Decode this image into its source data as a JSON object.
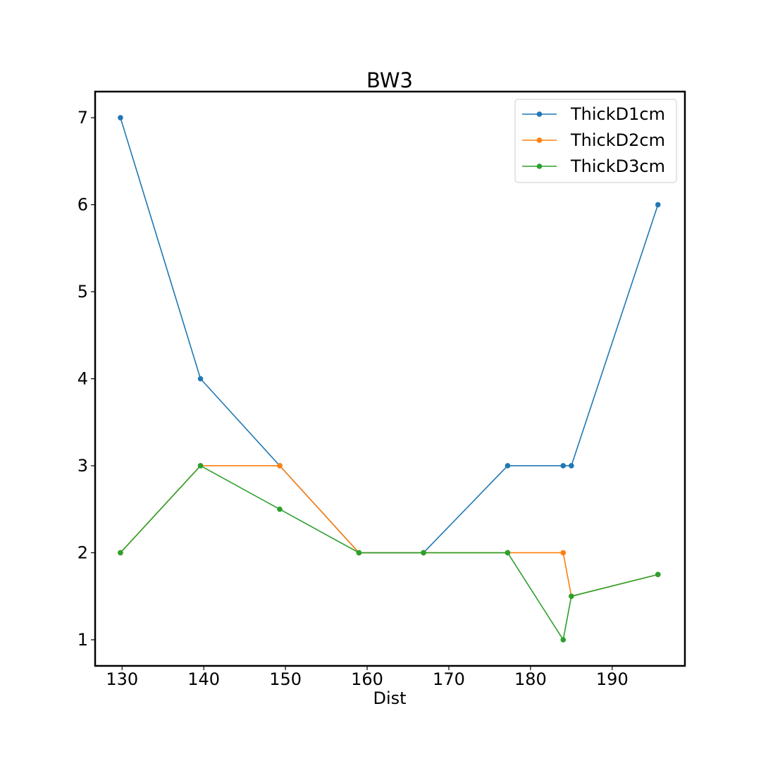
{
  "chart_data": {
    "type": "line",
    "title": "BW3",
    "xlabel": "Dist",
    "ylabel": "",
    "xlim": [
      126.7,
      198.9
    ],
    "ylim": [
      0.7,
      7.3
    ],
    "xticks": [
      130,
      140,
      150,
      160,
      170,
      180,
      190
    ],
    "yticks": [
      1,
      2,
      3,
      4,
      5,
      6,
      7
    ],
    "x": [
      129.8,
      139.6,
      149.3,
      159.0,
      166.9,
      177.2,
      184.0,
      185.0,
      195.6
    ],
    "series": [
      {
        "name": "ThickD1cm",
        "color": "#1f77b4",
        "values": [
          7,
          4,
          3,
          2,
          2,
          3,
          3,
          3,
          6
        ]
      },
      {
        "name": "ThickD2cm",
        "color": "#ff7f0e",
        "values": [
          2,
          3,
          3,
          2,
          2,
          2,
          2,
          1.5,
          1.75
        ]
      },
      {
        "name": "ThickD3cm",
        "color": "#2ca02c",
        "values": [
          2,
          3,
          2.5,
          2,
          2,
          2,
          1,
          1.5,
          1.75
        ]
      }
    ],
    "grid": false,
    "legend_position": "upper right"
  }
}
